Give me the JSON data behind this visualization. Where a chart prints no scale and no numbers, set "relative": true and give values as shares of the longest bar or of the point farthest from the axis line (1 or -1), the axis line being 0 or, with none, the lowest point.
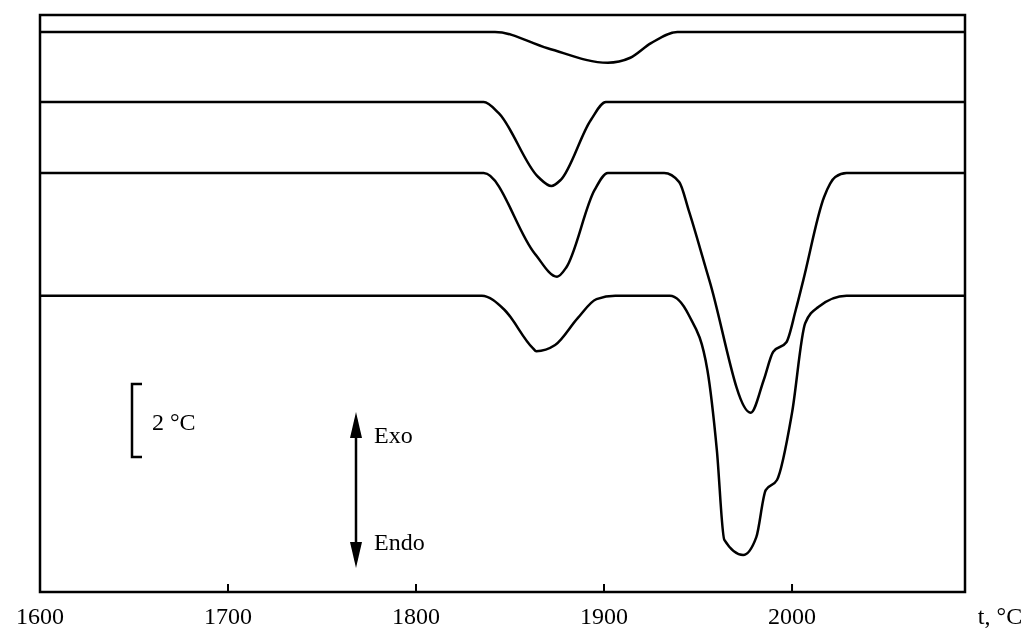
{
  "chart_data": {
    "type": "line",
    "relative": true,
    "xlabel": "t, °C",
    "x": [
      1600,
      1842,
      1870,
      1902,
      1914,
      1925,
      1939,
      2092
    ],
    "xlim": [
      1600,
      2092
    ],
    "xticks": [
      1600,
      1700,
      1800,
      1900,
      2000
    ],
    "series": [
      {
        "color": "#000000",
        "values": [
          1.0,
          1.0,
          0.971,
          0.945,
          0.954,
          0.98,
          1.0,
          1.0
        ]
      },
      {
        "color": "#000000",
        "x": [
          1600,
          1836,
          1844,
          1865,
          1872,
          1877,
          1893,
          1901,
          2092
        ],
        "values": [
          0.875,
          0.875,
          0.855,
          0.741,
          0.725,
          0.736,
          0.843,
          0.875,
          0.875
        ]
      },
      {
        "color": "#000000",
        "x": [
          1600,
          1836,
          1863,
          1875,
          1880,
          1895,
          1902,
          1932,
          1940,
          1945,
          1956,
          1978,
          1985,
          1990,
          1997,
          2002,
          2006,
          2017,
          2023,
          2029,
          2092
        ],
        "values": [
          0.748,
          0.748,
          0.605,
          0.563,
          0.58,
          0.718,
          0.748,
          0.748,
          0.732,
          0.682,
          0.557,
          0.32,
          0.379,
          0.429,
          0.446,
          0.504,
          0.557,
          0.705,
          0.741,
          0.748,
          0.748
        ]
      },
      {
        "color": "#000000",
        "x": [
          1600,
          1835,
          1847,
          1862,
          1864,
          1874,
          1886,
          1896,
          1906,
          1935,
          1945,
          1955,
          1960,
          1964,
          1974,
          1981,
          1986,
          1992,
          2000,
          2007,
          2014,
          2029,
          2092
        ],
        "values": [
          0.529,
          0.529,
          0.504,
          0.436,
          0.43,
          0.441,
          0.489,
          0.523,
          0.529,
          0.529,
          0.495,
          0.396,
          0.254,
          0.093,
          0.066,
          0.098,
          0.182,
          0.2,
          0.32,
          0.48,
          0.509,
          0.529,
          0.529
        ]
      }
    ],
    "marker": "none",
    "line_style": "solid",
    "grid": false,
    "annotations": [
      "2 °C",
      "Exo",
      "Endo"
    ]
  }
}
